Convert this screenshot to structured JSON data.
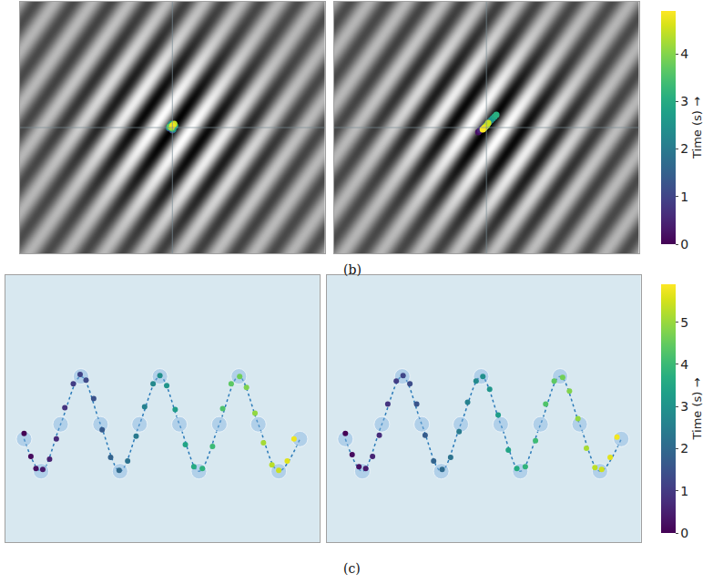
{
  "chart_data": [
    {
      "type": "scatter",
      "title": "(b)",
      "tick_labels": false,
      "xlim": [
        0,
        338
      ],
      "ylim": [
        0,
        278
      ],
      "colorbar": {
        "title": "Time (s) →",
        "range": [
          0,
          4.9
        ],
        "ticks": [
          0,
          1,
          2,
          3,
          4
        ]
      },
      "panels": [
        {
          "gaze": {
            "marker": "circle",
            "x": [
              168,
              170,
              166,
              169,
              171,
              167,
              165,
              170,
              168,
              172,
              169,
              166,
              170,
              168,
              171,
              169
            ],
            "y": [
              139,
              141,
              138,
              136,
              140,
              142,
              139,
              137,
              143,
              141,
              138,
              140,
              142,
              139,
              143,
              141
            ],
            "time": [
              0.3,
              0.6,
              0.9,
              1.2,
              1.5,
              1.8,
              2.1,
              2.4,
              2.7,
              3.0,
              3.3,
              3.6,
              3.9,
              4.2,
              4.5,
              4.8
            ]
          }
        },
        {
          "gaze": {
            "marker": "circle",
            "x": [
              160,
              162,
              164,
              166,
              168,
              170,
              172,
              174,
              176,
              178,
              180,
              170,
              168,
              166,
              169,
              171,
              167,
              165
            ],
            "y": [
              134,
              136,
              138,
              139,
              141,
              143,
              145,
              147,
              149,
              151,
              153,
              142,
              140,
              138,
              141,
              144,
              139,
              137
            ],
            "time": [
              0.2,
              0.5,
              0.8,
              1.1,
              1.4,
              1.7,
              2.0,
              2.3,
              2.6,
              2.9,
              3.1,
              3.4,
              3.7,
              4.0,
              4.3,
              4.5,
              4.7,
              4.9
            ]
          }
        }
      ]
    },
    {
      "type": "scatter",
      "title": "(c)",
      "tick_labels": false,
      "xlim": [
        0,
        370
      ],
      "ylim": [
        0,
        290
      ],
      "colorbar": {
        "title": "Time (s) →",
        "range": [
          0,
          5.9
        ],
        "ticks": [
          0,
          1,
          2,
          3,
          4,
          5
        ]
      },
      "panels": [
        {
          "target": {
            "color": "#2b7bb9",
            "line_style": "dotted",
            "x": [
              22,
              42,
              65,
              89,
              112,
              135,
              158,
              182,
              205,
              228,
              252,
              275,
              298,
              322,
              347
            ],
            "y": [
              112,
              77,
              128,
              180,
              128,
              77,
              128,
              180,
              128,
              77,
              128,
              180,
              128,
              77,
              112
            ]
          },
          "gaze": {
            "marker": "circle",
            "x": [
              22,
              30,
              36,
              44,
              52,
              60,
              70,
              80,
              88,
              95,
              104,
              114,
              124,
              134,
              144,
              154,
              164,
              174,
              182,
              190,
              200,
              212,
              222,
              232,
              244,
              256,
              266,
              276,
              284,
              294,
              304,
              314,
              322,
              332,
              340
            ],
            "y": [
              118,
              93,
              80,
              79,
              90,
              112,
              146,
              172,
              182,
              176,
              156,
              122,
              92,
              78,
              88,
              115,
              147,
              172,
              181,
              170,
              144,
              106,
              82,
              80,
              104,
              145,
              172,
              180,
              168,
              140,
              108,
              84,
              78,
              88,
              112
            ],
            "time": [
              0,
              0.15,
              0.25,
              0.4,
              0.54,
              0.69,
              0.87,
              1.05,
              1.2,
              1.32,
              1.49,
              1.67,
              1.85,
              2.03,
              2.21,
              2.39,
              2.57,
              2.76,
              2.9,
              3.05,
              3.23,
              3.44,
              3.63,
              3.81,
              4.02,
              4.24,
              4.42,
              4.6,
              4.75,
              4.93,
              5.11,
              5.29,
              5.44,
              5.62,
              5.76
            ]
          }
        },
        {
          "target": {
            "color": "#2b7bb9",
            "line_style": "dotted",
            "x": [
              22,
              42,
              65,
              89,
              112,
              135,
              158,
              182,
              205,
              228,
              252,
              275,
              298,
              322,
              347
            ],
            "y": [
              112,
              77,
              128,
              180,
              128,
              77,
              128,
              180,
              128,
              77,
              128,
              180,
              128,
              77,
              112
            ]
          },
          "gaze": {
            "marker": "circle",
            "x": [
              22,
              30,
              38,
              46,
              54,
              62,
              72,
              82,
              90,
              98,
              106,
              116,
              126,
              136,
              146,
              156,
              166,
              176,
              184,
              192,
              202,
              214,
              224,
              234,
              246,
              258,
              268,
              278,
              286,
              296,
              306,
              316,
              324,
              334,
              342
            ],
            "y": [
              118,
              95,
              82,
              80,
              93,
              116,
              150,
              175,
              181,
              172,
              150,
              116,
              88,
              79,
              92,
              120,
              152,
              175,
              180,
              166,
              138,
              100,
              80,
              82,
              110,
              150,
              175,
              179,
              164,
              134,
              102,
              81,
              79,
              92,
              114
            ],
            "time": [
              0,
              0.16,
              0.28,
              0.42,
              0.57,
              0.72,
              0.9,
              1.08,
              1.23,
              1.37,
              1.52,
              1.7,
              1.88,
              2.06,
              2.24,
              2.42,
              2.6,
              2.78,
              2.93,
              3.08,
              3.26,
              3.47,
              3.66,
              3.84,
              4.05,
              4.27,
              4.45,
              4.63,
              4.78,
              4.96,
              5.14,
              5.32,
              5.47,
              5.65,
              5.8
            ]
          }
        }
      ]
    }
  ]
}
